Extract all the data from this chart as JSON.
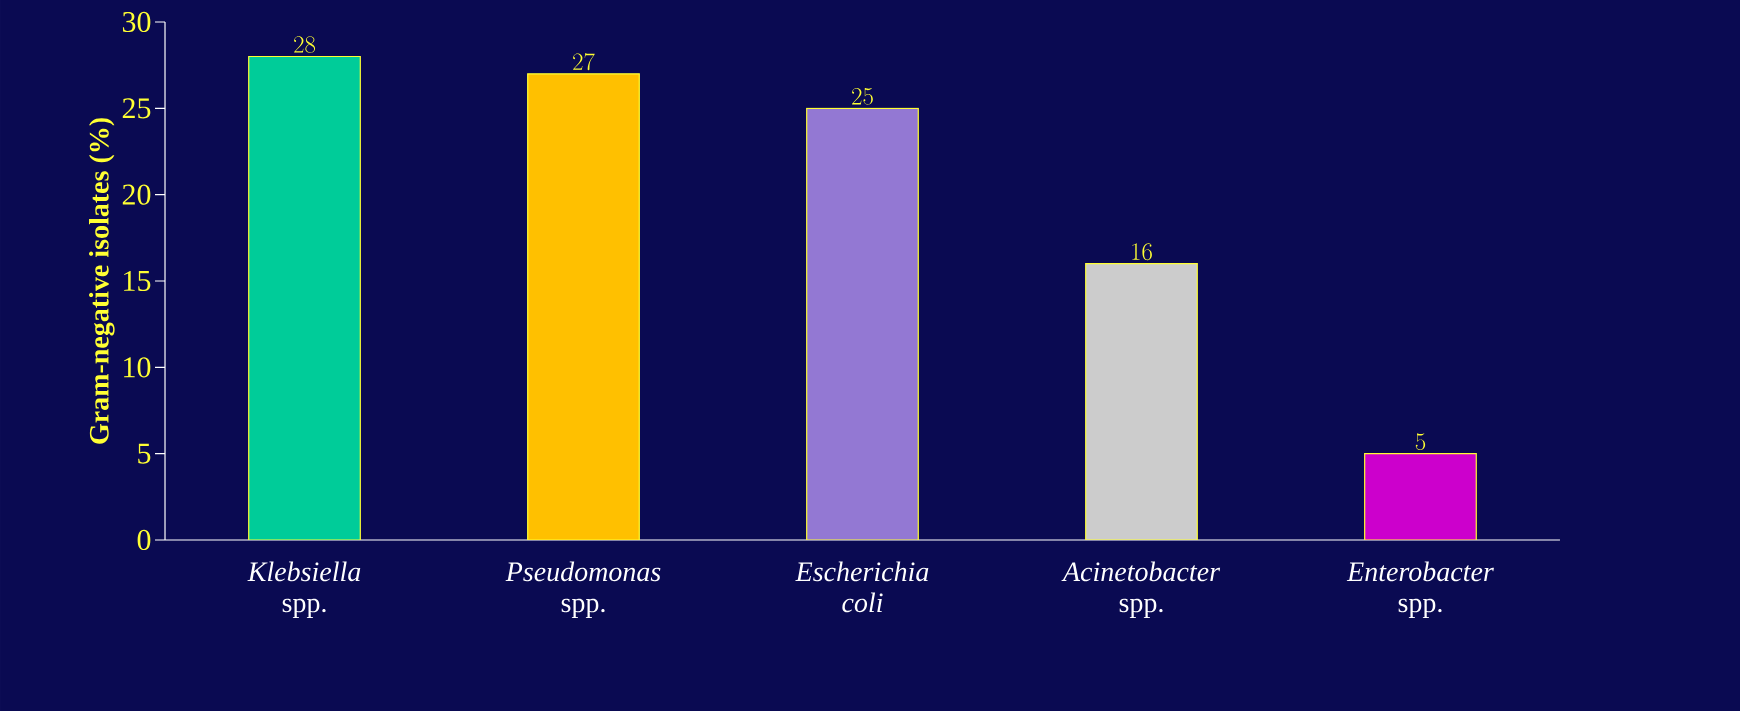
{
  "chart_data": {
    "type": "bar",
    "ylabel": "Gram-negative isolates (%)",
    "categories": [
      "*Klebsiella* spp.",
      "*Pseudomonas* spp.",
      "*Escherichia coli*",
      "*Acinetobacter* spp.",
      "*Enterobacter* spp."
    ],
    "values": [
      28,
      27,
      25,
      16,
      5
    ],
    "colors": [
      "#00cc99",
      "#ffc000",
      "#9378d3",
      "#cccccc",
      "#cc00cc"
    ],
    "ylim": [
      0,
      30
    ],
    "yticks": [
      0,
      5,
      10,
      15,
      20,
      25,
      30
    ],
    "data_labels": true
  }
}
